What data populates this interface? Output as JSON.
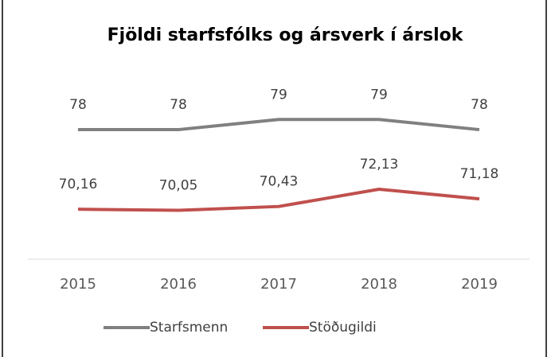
{
  "chart_data": {
    "type": "line",
    "title": "Fjöldi starfsfólks og ársverk í árslok",
    "categories": [
      "2015",
      "2016",
      "2017",
      "2018",
      "2019"
    ],
    "series": [
      {
        "name": "Starfsmenn",
        "color": "#808080",
        "values": [
          78,
          78,
          79,
          79,
          78
        ]
      },
      {
        "name": "Stöðugildi",
        "color": "#c0504d",
        "values": [
          70.16,
          70.05,
          70.43,
          72.13,
          71.18
        ],
        "value_labels": [
          "70,16",
          "70,05",
          "70,43",
          "72,13",
          "71,18"
        ]
      }
    ],
    "ylim": [
      65,
      82
    ],
    "legend": "bottom"
  }
}
